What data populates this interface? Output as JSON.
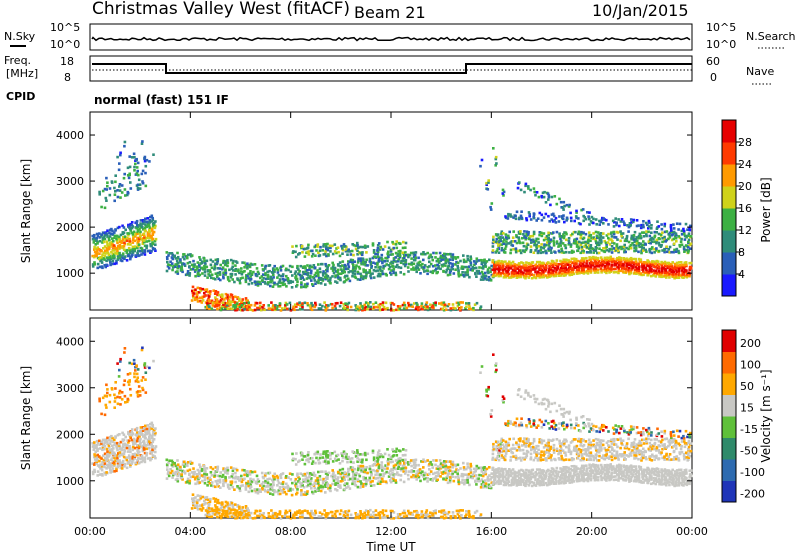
{
  "header": {
    "title": "Christmas Valley West (fitACF)",
    "beam": "Beam 21",
    "date": "10/Jan/2015"
  },
  "top_strip": {
    "left_label": "N.Sky",
    "left_ticks": [
      "10^5",
      "10^0"
    ],
    "right_ticks": [
      "10^5",
      "10^0"
    ],
    "right_label": "N.Search"
  },
  "freq_strip": {
    "left_label_1": "Freq.",
    "left_label_2": "[MHz]",
    "left_ticks": [
      "18",
      "8"
    ],
    "right_ticks": [
      "60",
      "0"
    ],
    "right_label": "Nave"
  },
  "cpid": {
    "label": "CPID",
    "value": "normal (fast) 151 IF"
  },
  "chart_data": [
    {
      "type": "heatmap",
      "ylabel": "Slant Range [km]",
      "yticks": [
        "1000",
        "2000",
        "3000",
        "4000"
      ],
      "ylim": [
        200,
        4500
      ],
      "colorbar": {
        "label": "Power [dB]",
        "ticks": [
          "4",
          "8",
          "12",
          "16",
          "20",
          "24",
          "28"
        ],
        "range": [
          0,
          30
        ],
        "colors": [
          "#1a1aff",
          "#2a5fb8",
          "#2f8c7a",
          "#3cb043",
          "#cfd21a",
          "#ff9a00",
          "#ff3a00",
          "#e60000"
        ]
      }
    },
    {
      "type": "heatmap",
      "ylabel": "Slant Range [km]",
      "yticks": [
        "1000",
        "2000",
        "3000",
        "4000"
      ],
      "ylim": [
        200,
        4500
      ],
      "xlabel": "Time UT",
      "xticks": [
        "00:00",
        "04:00",
        "08:00",
        "12:00",
        "16:00",
        "20:00",
        "00:00"
      ],
      "colorbar": {
        "label": "Velocity [m s⁻¹]",
        "ticks": [
          "200",
          "100",
          "50",
          "15",
          "-15",
          "-50",
          "-100",
          "-200"
        ],
        "colors": [
          "#1f35b8",
          "#2e6bb0",
          "#2f8a6a",
          "#5fc03a",
          "#c8c8c4",
          "#ffa800",
          "#ff6a00",
          "#e00000"
        ]
      }
    }
  ]
}
